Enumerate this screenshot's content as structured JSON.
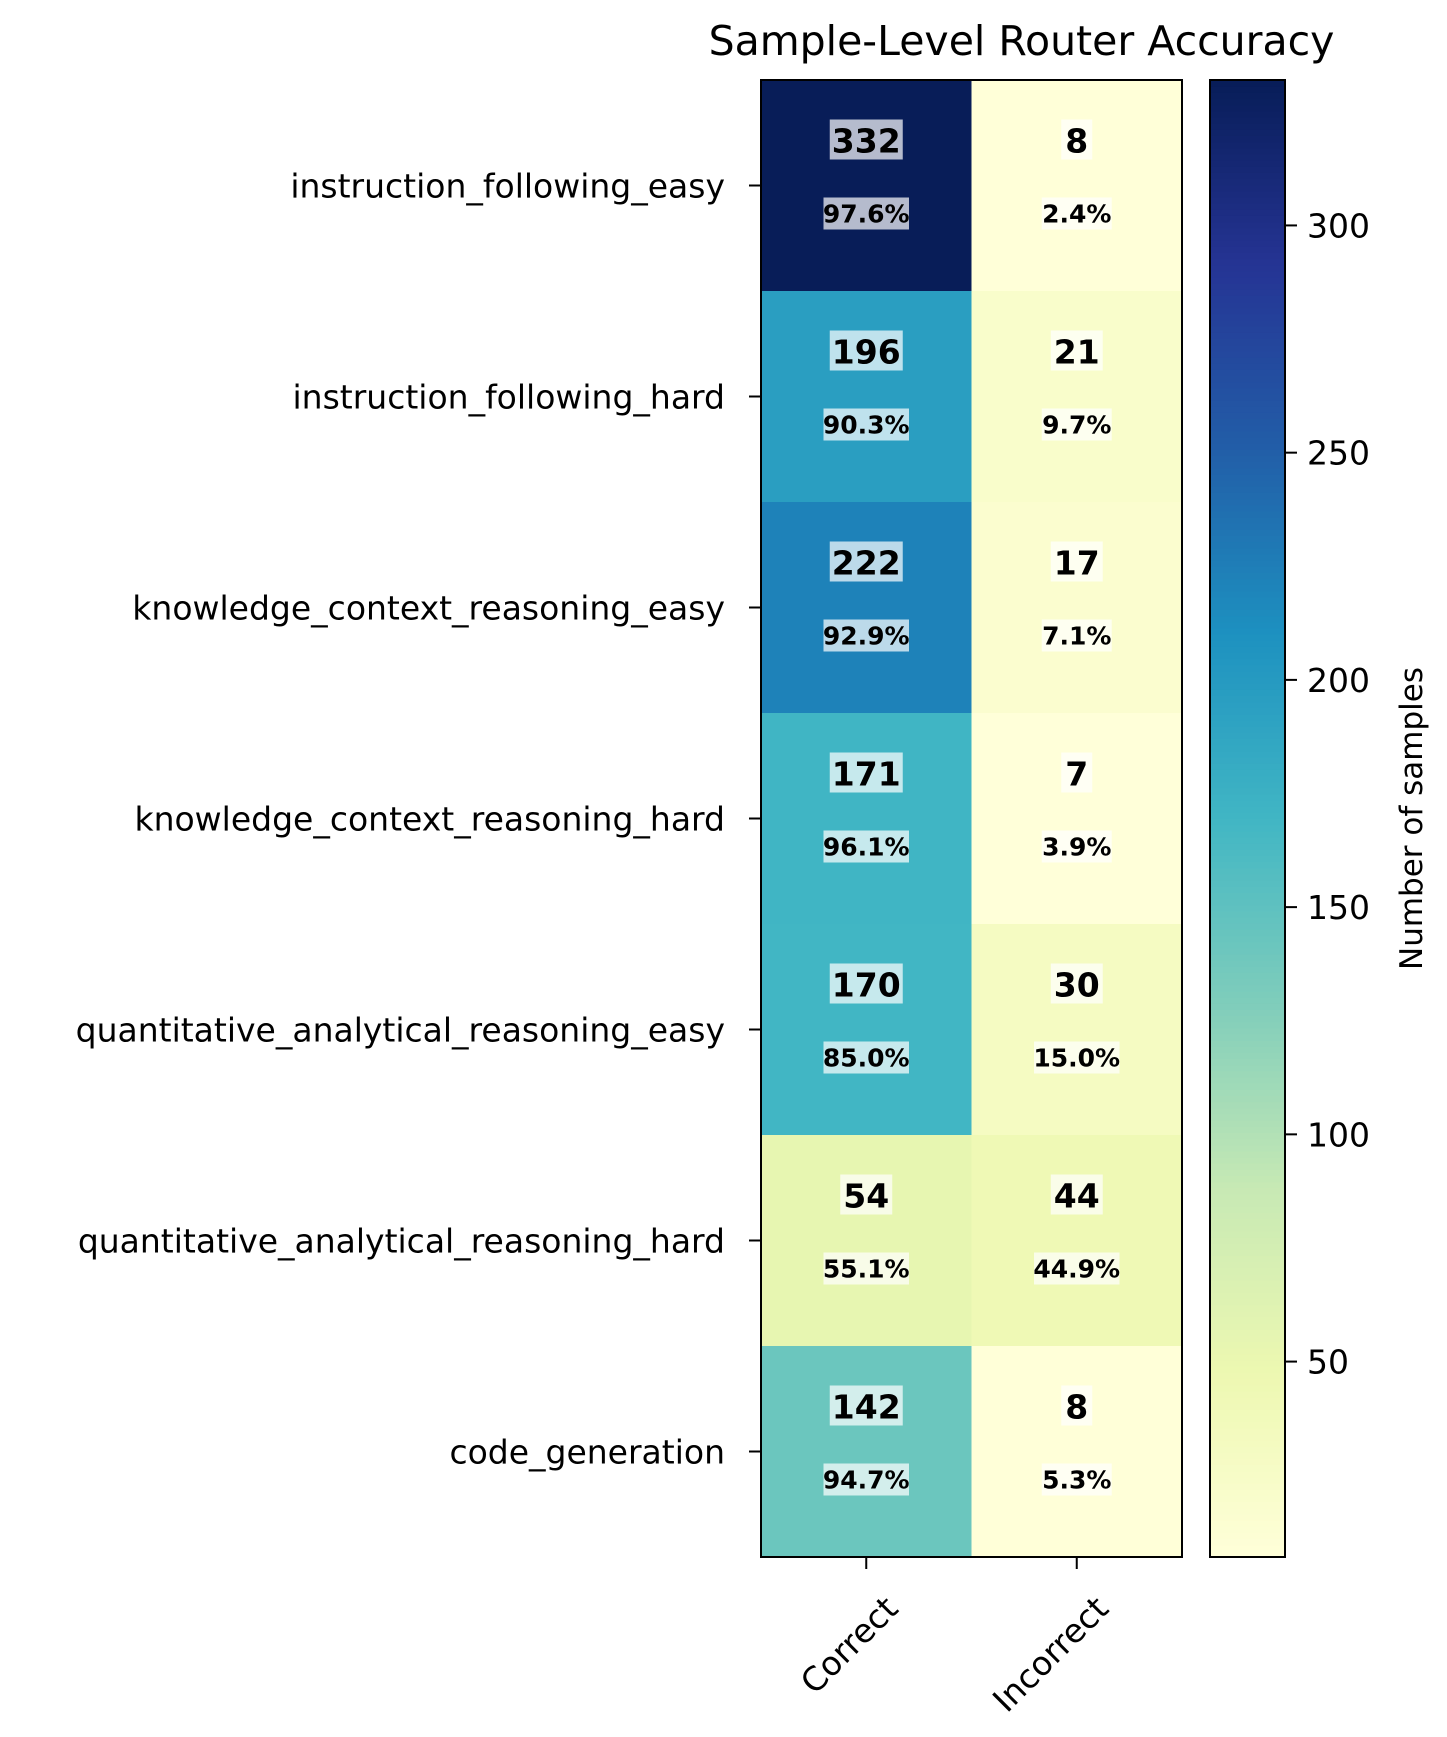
{
  "chart_data": {
    "type": "heatmap",
    "title": "Sample-Level Router Accuracy",
    "rows": [
      "instruction_following_easy",
      "instruction_following_hard",
      "knowledge_context_reasoning_easy",
      "knowledge_context_reasoning_hard",
      "quantitative_analytical_reasoning_easy",
      "quantitative_analytical_reasoning_hard",
      "code_generation"
    ],
    "columns": [
      "Correct",
      "Incorrect"
    ],
    "values": [
      [
        332,
        8
      ],
      [
        196,
        21
      ],
      [
        222,
        17
      ],
      [
        171,
        7
      ],
      [
        170,
        30
      ],
      [
        54,
        44
      ],
      [
        142,
        8
      ]
    ],
    "percent_labels": [
      [
        "97.6%",
        "2.4%"
      ],
      [
        "90.3%",
        "9.7%"
      ],
      [
        "92.9%",
        "7.1%"
      ],
      [
        "96.1%",
        "3.9%"
      ],
      [
        "85.0%",
        "15.0%"
      ],
      [
        "55.1%",
        "44.9%"
      ],
      [
        "94.7%",
        "5.3%"
      ]
    ],
    "colormap": "YlGnBu",
    "colorbar": {
      "label": "Number of samples",
      "range": [
        7,
        332
      ],
      "ticks": [
        50,
        100,
        150,
        200,
        250,
        300
      ]
    }
  }
}
